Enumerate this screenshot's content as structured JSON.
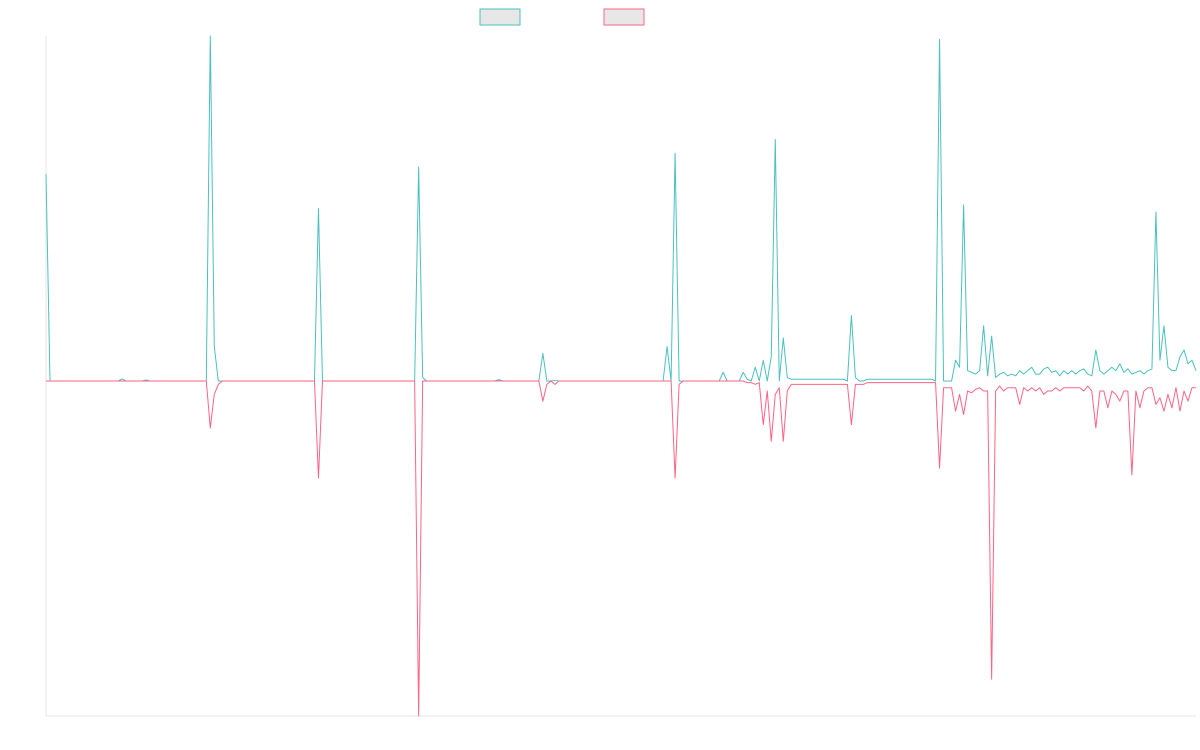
{
  "chart_data": {
    "type": "line",
    "title": "",
    "xlabel": "",
    "ylabel": "",
    "grid": false,
    "legend_position": "top-center",
    "ylim": [
      -100,
      100
    ],
    "x_count": 288,
    "series": [
      {
        "name": "",
        "color": "#4bc0c0",
        "fill": "#e7e7e7",
        "points": [
          [
            0,
            60
          ],
          [
            1,
            0
          ],
          [
            18,
            0
          ],
          [
            19,
            0.6
          ],
          [
            20,
            0
          ],
          [
            24,
            0
          ],
          [
            25,
            0.3
          ],
          [
            26,
            0
          ],
          [
            40,
            0
          ],
          [
            41,
            100
          ],
          [
            42,
            10
          ],
          [
            43,
            0
          ],
          [
            67,
            0
          ],
          [
            68,
            50
          ],
          [
            69,
            0
          ],
          [
            92,
            0
          ],
          [
            93,
            62
          ],
          [
            94,
            1
          ],
          [
            95,
            0
          ],
          [
            112,
            0
          ],
          [
            113,
            0.4
          ],
          [
            114,
            0
          ],
          [
            123,
            0
          ],
          [
            124,
            8
          ],
          [
            125,
            0
          ],
          [
            126,
            0
          ],
          [
            127,
            0.2
          ],
          [
            128,
            0
          ],
          [
            154,
            0
          ],
          [
            155,
            10
          ],
          [
            156,
            0
          ],
          [
            157,
            66
          ],
          [
            158,
            0
          ],
          [
            159,
            0
          ],
          [
            168,
            0
          ],
          [
            169,
            2.5
          ],
          [
            170,
            0
          ],
          [
            173,
            0
          ],
          [
            174,
            2.5
          ],
          [
            175,
            0.5
          ],
          [
            176,
            0
          ],
          [
            177,
            4
          ],
          [
            178,
            0
          ],
          [
            179,
            6
          ],
          [
            180,
            0
          ],
          [
            181,
            7
          ],
          [
            182,
            70
          ],
          [
            183,
            0
          ],
          [
            184,
            12.5
          ],
          [
            185,
            1
          ],
          [
            186,
            0.5
          ],
          [
            199,
            0.5
          ],
          [
            200,
            0
          ],
          [
            201,
            19
          ],
          [
            202,
            1
          ],
          [
            203,
            0
          ],
          [
            204,
            0
          ],
          [
            205,
            0.5
          ],
          [
            221,
            0.5
          ],
          [
            222,
            0
          ],
          [
            223,
            99
          ],
          [
            224,
            0
          ],
          [
            225,
            0
          ],
          [
            226,
            0
          ],
          [
            227,
            6
          ],
          [
            228,
            4
          ],
          [
            229,
            51
          ],
          [
            230,
            3
          ],
          [
            231,
            2.5
          ],
          [
            232,
            2
          ],
          [
            233,
            3
          ],
          [
            234,
            16
          ],
          [
            235,
            1.5
          ],
          [
            236,
            13
          ],
          [
            237,
            1
          ],
          [
            238,
            2
          ],
          [
            239,
            2.5
          ],
          [
            240,
            1.5
          ],
          [
            241,
            2
          ],
          [
            242,
            1.5
          ],
          [
            243,
            3
          ],
          [
            244,
            2
          ],
          [
            245,
            3
          ],
          [
            246,
            4
          ],
          [
            247,
            2
          ],
          [
            248,
            2
          ],
          [
            249,
            3.5
          ],
          [
            250,
            4
          ],
          [
            251,
            2.5
          ],
          [
            252,
            3
          ],
          [
            253,
            1.5
          ],
          [
            254,
            3
          ],
          [
            255,
            2
          ],
          [
            256,
            3
          ],
          [
            257,
            2
          ],
          [
            258,
            3
          ],
          [
            259,
            3.5
          ],
          [
            260,
            2
          ],
          [
            261,
            1.5
          ],
          [
            262,
            9
          ],
          [
            263,
            3
          ],
          [
            264,
            2
          ],
          [
            265,
            3
          ],
          [
            266,
            4
          ],
          [
            267,
            3
          ],
          [
            268,
            5
          ],
          [
            269,
            2.5
          ],
          [
            270,
            3.5
          ],
          [
            271,
            2
          ],
          [
            272,
            2.5
          ],
          [
            273,
            3
          ],
          [
            274,
            2
          ],
          [
            275,
            3
          ],
          [
            276,
            3.5
          ],
          [
            277,
            49
          ],
          [
            278,
            6
          ],
          [
            279,
            16
          ],
          [
            280,
            4
          ],
          [
            281,
            3
          ],
          [
            282,
            3
          ],
          [
            283,
            7
          ],
          [
            284,
            9
          ],
          [
            285,
            5
          ],
          [
            286,
            6
          ],
          [
            287,
            3
          ]
        ]
      },
      {
        "name": "",
        "color": "#ff6384",
        "fill": "#e7e7e7",
        "points": [
          [
            0,
            0
          ],
          [
            40,
            0
          ],
          [
            41,
            -14
          ],
          [
            42,
            -4
          ],
          [
            43,
            -1
          ],
          [
            44,
            0
          ],
          [
            67,
            0
          ],
          [
            68,
            -29
          ],
          [
            69,
            0
          ],
          [
            92,
            0
          ],
          [
            93,
            -100
          ],
          [
            94,
            0
          ],
          [
            123,
            0
          ],
          [
            124,
            -6
          ],
          [
            125,
            -1
          ],
          [
            126,
            0
          ],
          [
            127,
            -1
          ],
          [
            128,
            0
          ],
          [
            156,
            0
          ],
          [
            157,
            -29
          ],
          [
            158,
            -1
          ],
          [
            159,
            0
          ],
          [
            174,
            0
          ],
          [
            175,
            -0.5
          ],
          [
            176,
            -0.5
          ],
          [
            177,
            -1
          ],
          [
            178,
            -0.5
          ],
          [
            179,
            -13
          ],
          [
            180,
            -3
          ],
          [
            181,
            -18
          ],
          [
            182,
            -4
          ],
          [
            183,
            -2
          ],
          [
            184,
            -18
          ],
          [
            185,
            -3
          ],
          [
            186,
            -1
          ],
          [
            199,
            -1
          ],
          [
            200,
            -1
          ],
          [
            201,
            -13
          ],
          [
            202,
            -1
          ],
          [
            203,
            -1
          ],
          [
            204,
            -1
          ],
          [
            205,
            -0.5
          ],
          [
            221,
            -0.5
          ],
          [
            222,
            -0.5
          ],
          [
            223,
            -26
          ],
          [
            224,
            -2
          ],
          [
            225,
            -2
          ],
          [
            226,
            -2
          ],
          [
            227,
            -9
          ],
          [
            228,
            -4
          ],
          [
            229,
            -10
          ],
          [
            230,
            -3
          ],
          [
            231,
            -3.5
          ],
          [
            232,
            -2.5
          ],
          [
            233,
            -2
          ],
          [
            234,
            -3
          ],
          [
            235,
            -3
          ],
          [
            236,
            -89
          ],
          [
            237,
            -3
          ],
          [
            238,
            -1.5
          ],
          [
            239,
            -3
          ],
          [
            240,
            -2
          ],
          [
            241,
            -2
          ],
          [
            242,
            -2
          ],
          [
            243,
            -7
          ],
          [
            244,
            -2
          ],
          [
            245,
            -3
          ],
          [
            246,
            -2
          ],
          [
            247,
            -3
          ],
          [
            248,
            -2
          ],
          [
            249,
            -4
          ],
          [
            250,
            -3
          ],
          [
            251,
            -3
          ],
          [
            252,
            -2
          ],
          [
            253,
            -3
          ],
          [
            254,
            -2
          ],
          [
            255,
            -2
          ],
          [
            256,
            -2
          ],
          [
            257,
            -2
          ],
          [
            258,
            -2
          ],
          [
            259,
            -3
          ],
          [
            260,
            -1.5
          ],
          [
            261,
            -3
          ],
          [
            262,
            -14
          ],
          [
            263,
            -3
          ],
          [
            264,
            -3
          ],
          [
            265,
            -8
          ],
          [
            266,
            -3
          ],
          [
            267,
            -4
          ],
          [
            268,
            -6
          ],
          [
            269,
            -3
          ],
          [
            270,
            -3
          ],
          [
            271,
            -28
          ],
          [
            272,
            -3
          ],
          [
            273,
            -8
          ],
          [
            274,
            -3
          ],
          [
            275,
            -2
          ],
          [
            276,
            -2
          ],
          [
            277,
            -7
          ],
          [
            278,
            -5
          ],
          [
            279,
            -9
          ],
          [
            280,
            -4
          ],
          [
            281,
            -8
          ],
          [
            282,
            -2
          ],
          [
            283,
            -9
          ],
          [
            284,
            -3
          ],
          [
            285,
            -6
          ],
          [
            286,
            -2
          ],
          [
            287,
            -2
          ]
        ]
      }
    ]
  }
}
